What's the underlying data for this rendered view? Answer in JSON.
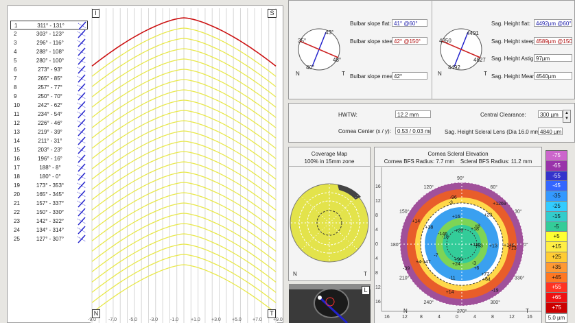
{
  "meridians": [
    {
      "n": "1",
      "angle": "311° - 131°",
      "selected": true
    },
    {
      "n": "2",
      "angle": "303° - 123°"
    },
    {
      "n": "3",
      "angle": "296° - 116°"
    },
    {
      "n": "4",
      "angle": "288° - 108°"
    },
    {
      "n": "5",
      "angle": "280° - 100°"
    },
    {
      "n": "6",
      "angle": "273° - 93°"
    },
    {
      "n": "7",
      "angle": "265° - 85°"
    },
    {
      "n": "8",
      "angle": "257° - 77°"
    },
    {
      "n": "9",
      "angle": "250° - 70°"
    },
    {
      "n": "10",
      "angle": "242° - 62°"
    },
    {
      "n": "11",
      "angle": "234° - 54°"
    },
    {
      "n": "12",
      "angle": "226° - 46°"
    },
    {
      "n": "13",
      "angle": "219° - 39°"
    },
    {
      "n": "14",
      "angle": "211° - 31°"
    },
    {
      "n": "15",
      "angle": "203° - 23°"
    },
    {
      "n": "16",
      "angle": "196° - 16°"
    },
    {
      "n": "17",
      "angle": "188° - 8°"
    },
    {
      "n": "18",
      "angle": "180° - 0°"
    },
    {
      "n": "19",
      "angle": "173° - 353°"
    },
    {
      "n": "20",
      "angle": "165° - 345°"
    },
    {
      "n": "21",
      "angle": "157° - 337°"
    },
    {
      "n": "22",
      "angle": "150° - 330°"
    },
    {
      "n": "23",
      "angle": "142° - 322°"
    },
    {
      "n": "24",
      "angle": "134° - 314°"
    },
    {
      "n": "25",
      "angle": "127° - 307°"
    }
  ],
  "profile": {
    "corner_tl": "I",
    "corner_tr": "S",
    "corner_bl": "N",
    "corner_br": "T",
    "x_ticks": [
      "-9.0",
      "-7.0",
      "-5.0",
      "-3.0",
      "-1.0",
      "+1.0",
      "+3.0",
      "+5.0",
      "+7.0",
      "+9.0"
    ],
    "selected_color": "#cc1111",
    "line_color": "#e8e84a"
  },
  "bulbar": {
    "dial": {
      "top": "43°",
      "left": "35°",
      "right": "48°",
      "bottom": "40°",
      "n": "N",
      "t": "T"
    },
    "flat_label": "Bulbar slope flat:",
    "flat_value": "41° @60°",
    "steep_label": "Bulbar slope steep:",
    "steep_value": "42° @150°",
    "mean_label": "Bulbar slope mean:",
    "mean_value": "42°"
  },
  "sag": {
    "dial": {
      "top": "4491",
      "left": "4350",
      "right": "4827",
      "bottom": "4492",
      "n": "N",
      "t": "T"
    },
    "flat_label": "Sag. Height flat:",
    "flat_value": "4492µm @60°",
    "steep_label": "Sag. Height steep:",
    "steep_value": "4589µm @150°",
    "astig_label": "Sag. Height Astig.:",
    "astig_value": "97µm",
    "mean_label": "Sag. Height Mean:",
    "mean_value": "4540µm"
  },
  "measures": {
    "hwtw_label": "HWTW:",
    "hwtw_value": "12.2 mm",
    "center_label": "Cornea Center (x / y):",
    "center_value": "0.53 / 0.03 mm",
    "clearance_label": "Central Clearance:",
    "clearance_value": "300 µm",
    "sag_lens_label": "Sag. Height Scleral Lens  (Dia 16.0 mm):",
    "sag_lens_value": "4840 µm"
  },
  "coverage": {
    "title": "Coverage Map",
    "subtitle": "100% in 15mm zone",
    "n": "N",
    "t": "T"
  },
  "camera": {
    "corner": "L"
  },
  "elevation": {
    "title": "Cornea Scleral Elevation",
    "subtitle": "Cornea BFS Radius: 7.7 mm    Scleral BFS Radius: 11.2 mm",
    "y_ticks": [
      "16",
      "12",
      "8",
      "4",
      "0",
      "4",
      "8",
      "12",
      "16"
    ],
    "x_ticks": [
      "16",
      "12",
      "8",
      "4",
      "0",
      "4",
      "8",
      "12",
      "16"
    ],
    "angles": [
      "90°",
      "60°",
      "30°",
      "0°",
      "330°",
      "300°",
      "270°",
      "240°",
      "210°",
      "180°",
      "150°",
      "120°"
    ],
    "n": "N",
    "t": "T",
    "values": [
      "+110",
      "+77",
      "+90",
      "-147",
      "-18",
      "-3",
      "+18",
      "+146",
      "-3",
      "+14",
      "-7",
      "+14",
      "+16",
      "+1269",
      "+13",
      "-19",
      "-11",
      "-39",
      "+38",
      "+28",
      "+23",
      "+63",
      "+64",
      "+24",
      "+4",
      "-146",
      "-96",
      "+8",
      "+13",
      "+6"
    ]
  },
  "scale": {
    "values": [
      "-75",
      "-65",
      "-55",
      "-45",
      "-35",
      "-25",
      "-15",
      "-5",
      "+5",
      "+15",
      "+25",
      "+35",
      "+45",
      "+55",
      "+65",
      "+75"
    ],
    "colors": [
      "#cc66cc",
      "#9933aa",
      "#3333cc",
      "#3366ff",
      "#3399ff",
      "#33ccff",
      "#33cccc",
      "#33cc99",
      "#ffff33",
      "#ffee44",
      "#ffcc33",
      "#ff9933",
      "#ff7722",
      "#ff3322",
      "#ee1111",
      "#cc0000"
    ],
    "step": "5.0 µm"
  }
}
